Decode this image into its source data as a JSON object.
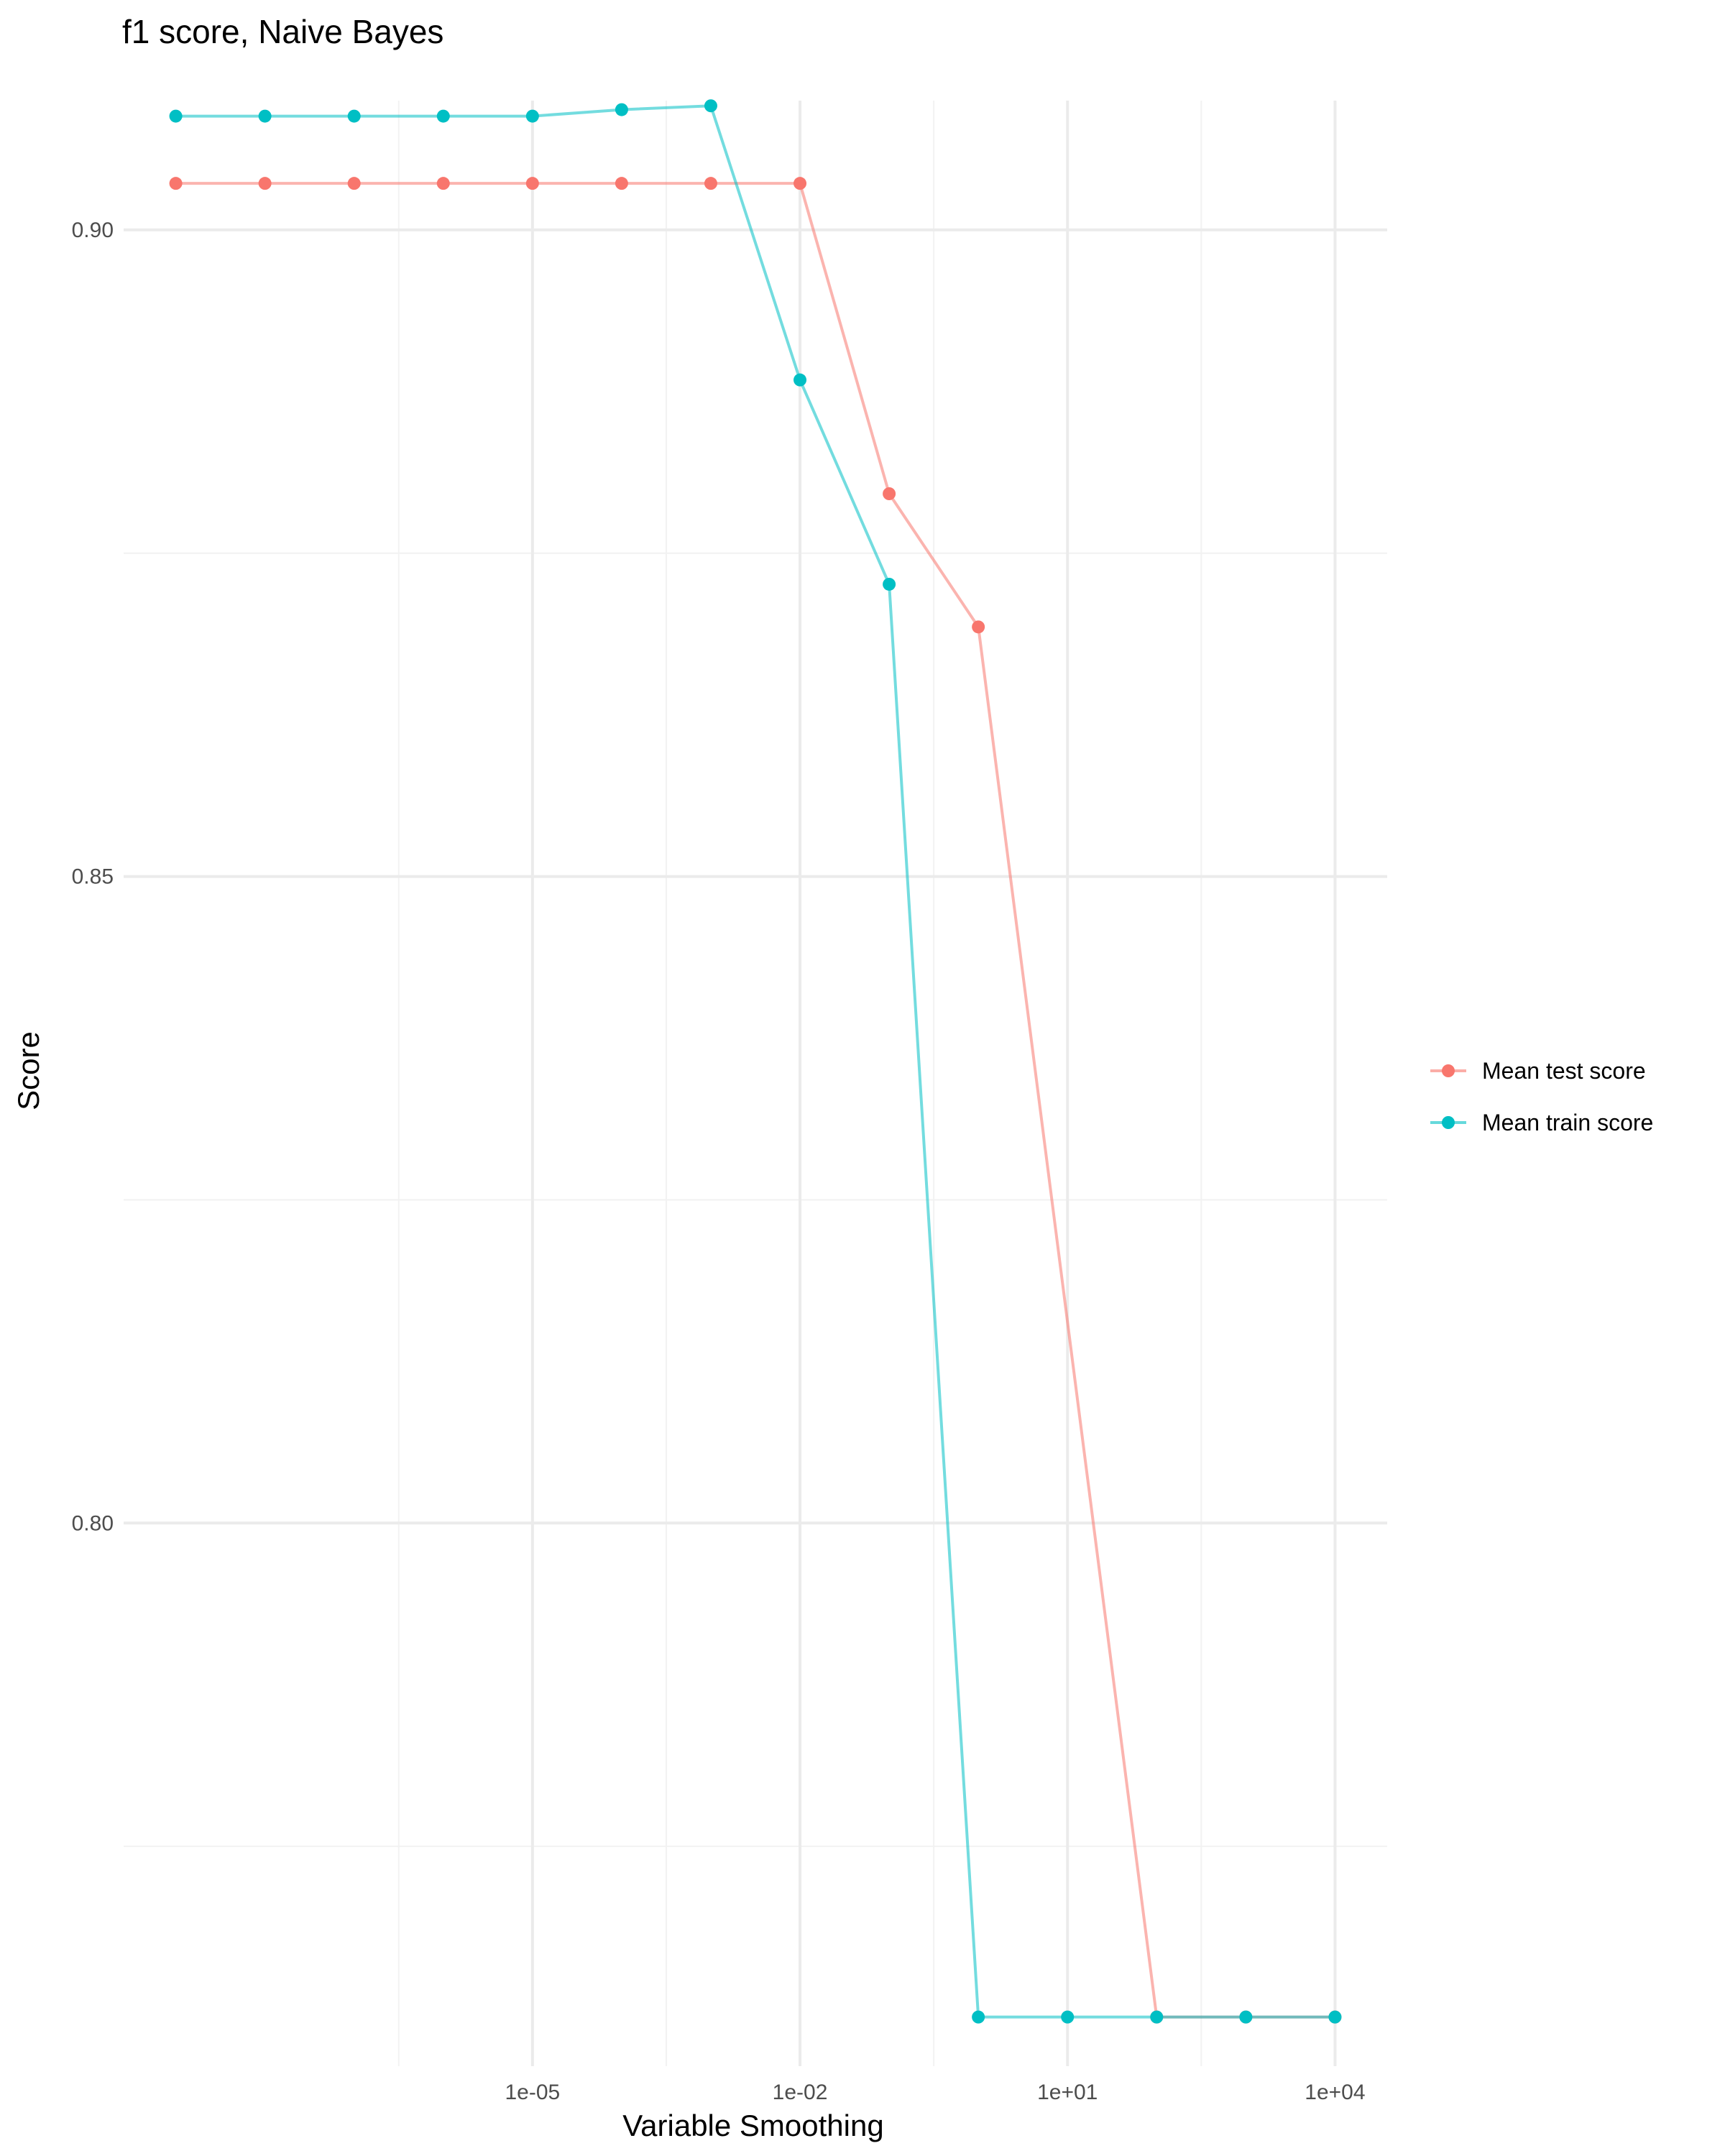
{
  "chart_data": {
    "type": "line",
    "title": "f1 score, Naive Bayes",
    "xlabel": "Variable Smoothing",
    "ylabel": "Score",
    "x_scale": "log10",
    "x": [
      1e-09,
      1e-08,
      1e-07,
      1e-06,
      1e-05,
      0.0001,
      0.001,
      0.01,
      0.1,
      1,
      10,
      100,
      1000,
      10000
    ],
    "x_major_ticks": [
      1e-05,
      0.01,
      10,
      10000
    ],
    "x_tick_labels": [
      "1e-05",
      "1e-02",
      "1e+01",
      "1e+04"
    ],
    "y_major_ticks": [
      0.8,
      0.85,
      0.9
    ],
    "y_tick_labels": [
      "0.80",
      "0.85",
      "0.90"
    ],
    "xlim": [
      1e-09,
      10000
    ],
    "ylim": [
      0.758,
      0.91
    ],
    "grid": true,
    "legend_position": "right",
    "series": [
      {
        "name": "Mean test score",
        "color": "#F8766D",
        "values": [
          0.9036,
          0.9036,
          0.9036,
          0.9036,
          0.9036,
          0.9036,
          0.9036,
          0.9036,
          0.8796,
          0.8693,
          null,
          0.7618,
          0.7618,
          0.7618
        ]
      },
      {
        "name": "Mean train score",
        "color": "#00BFC4",
        "values": [
          0.9088,
          0.9088,
          0.9088,
          0.9088,
          0.9088,
          0.9093,
          0.9096,
          0.8884,
          0.8726,
          0.7618,
          0.7618,
          0.7618,
          0.7618,
          0.7618
        ]
      }
    ]
  }
}
